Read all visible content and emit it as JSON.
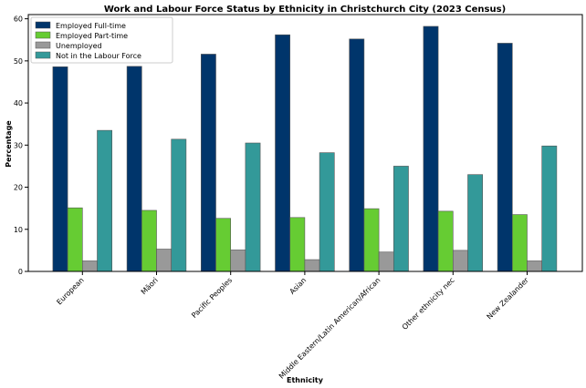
{
  "chart_data": {
    "type": "bar",
    "title": "Work and Labour Force Status by Ethnicity in Christchurch City (2023 Census)",
    "xlabel": "Ethnicity",
    "ylabel": "Percentage",
    "ylim": [
      0,
      61
    ],
    "yticks": [
      0,
      10,
      20,
      30,
      40,
      50,
      60
    ],
    "legend_position": "top-left",
    "grid": false,
    "categories": [
      "European",
      "Māori",
      "Pacific Peoples",
      "Asian",
      "Middle Eastern/Latin American/African",
      "Other ethnicity nec",
      "New Zealander"
    ],
    "series": [
      {
        "name": "Employed Full-time",
        "color": "#00356b",
        "values": [
          48.6,
          48.7,
          51.6,
          56.2,
          55.2,
          58.2,
          54.2
        ]
      },
      {
        "name": "Employed Part-time",
        "color": "#66cc33",
        "values": [
          15.1,
          14.5,
          12.6,
          12.8,
          14.9,
          14.3,
          13.5
        ]
      },
      {
        "name": "Unemployed",
        "color": "#999999",
        "values": [
          2.5,
          5.3,
          5.1,
          2.8,
          4.6,
          5.0,
          2.5
        ]
      },
      {
        "name": "Not in the Labour Force",
        "color": "#339999",
        "values": [
          33.5,
          31.4,
          30.5,
          28.2,
          25.0,
          23.0,
          29.8
        ]
      }
    ]
  }
}
